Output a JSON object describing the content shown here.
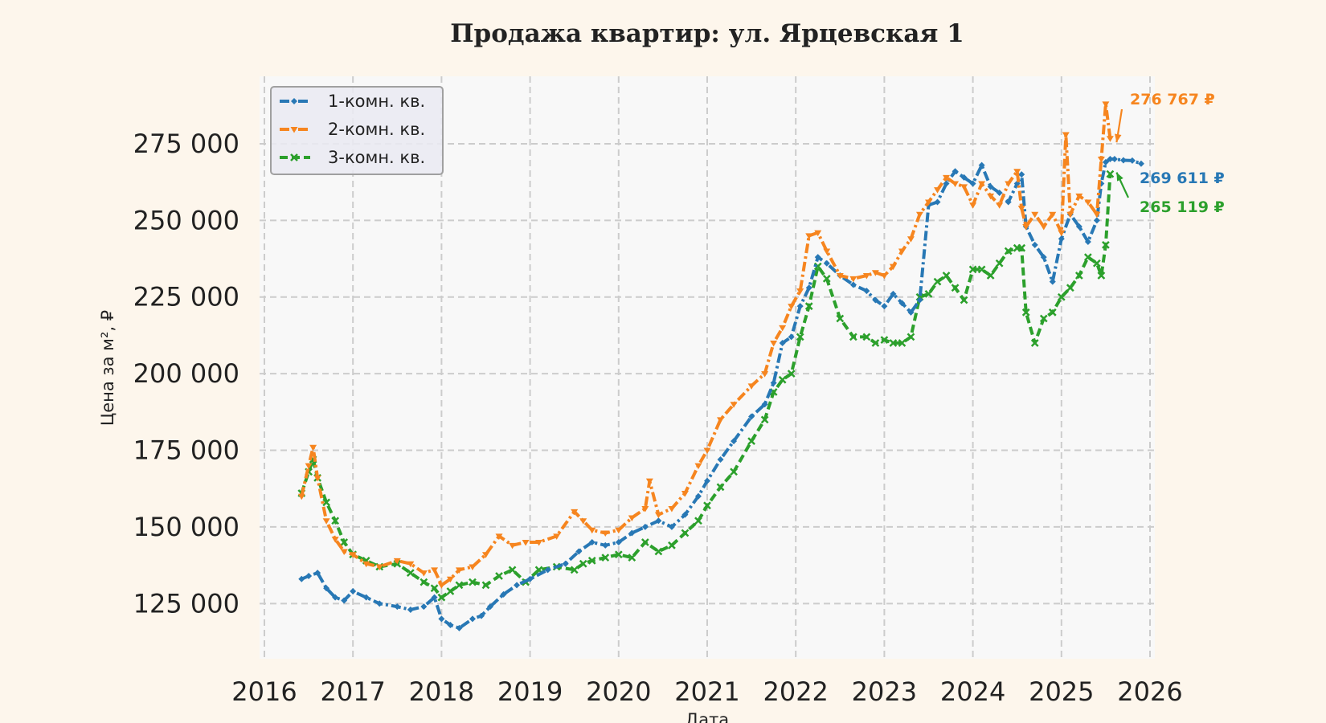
{
  "chart_data": {
    "type": "line",
    "title": "Продажа квартир: ул. Ярцевская 1",
    "xlabel": "Дата",
    "ylabel": "Цена за м², ₽",
    "xlim": [
      2016,
      2026
    ],
    "ylim": [
      107000,
      297000
    ],
    "x_ticks": [
      "2016",
      "2017",
      "2018",
      "2019",
      "2020",
      "2021",
      "2022",
      "2023",
      "2024",
      "2025",
      "2026"
    ],
    "y_ticks": [
      "125 000",
      "150 000",
      "175 000",
      "200 000",
      "225 000",
      "250 000",
      "275 000"
    ],
    "y_tick_values": [
      125000,
      150000,
      175000,
      200000,
      225000,
      250000,
      275000
    ],
    "grid": true,
    "legend_position": "top-left",
    "series": [
      {
        "name": "1-комн. кв.",
        "color": "#2878b5",
        "dash": "dashdot",
        "marker": "diamond",
        "x": [
          2016.42,
          2016.5,
          2016.6,
          2016.7,
          2016.8,
          2016.9,
          2017.0,
          2017.15,
          2017.3,
          2017.5,
          2017.65,
          2017.8,
          2017.92,
          2018.0,
          2018.1,
          2018.2,
          2018.35,
          2018.45,
          2018.55,
          2018.7,
          2018.85,
          2019.0,
          2019.2,
          2019.4,
          2019.55,
          2019.7,
          2019.85,
          2020.0,
          2020.15,
          2020.3,
          2020.45,
          2020.6,
          2020.75,
          2020.9,
          2021.0,
          2021.15,
          2021.3,
          2021.5,
          2021.65,
          2021.75,
          2021.85,
          2021.95,
          2022.05,
          2022.15,
          2022.25,
          2022.35,
          2022.5,
          2022.65,
          2022.8,
          2022.9,
          2023.0,
          2023.1,
          2023.2,
          2023.3,
          2023.4,
          2023.5,
          2023.6,
          2023.7,
          2023.8,
          2023.9,
          2024.0,
          2024.1,
          2024.2,
          2024.3,
          2024.4,
          2024.5,
          2024.55,
          2024.6,
          2024.7,
          2024.8,
          2024.9,
          2025.0,
          2025.1,
          2025.2,
          2025.3,
          2025.4,
          2025.45,
          2025.5,
          2025.55,
          2025.6,
          2025.7,
          2025.8,
          2025.9
        ],
        "y": [
          133000,
          134000,
          135000,
          130000,
          127000,
          126000,
          129000,
          127000,
          125000,
          124000,
          123000,
          124000,
          127000,
          120000,
          118000,
          117000,
          120000,
          121000,
          124000,
          128000,
          131000,
          133000,
          136000,
          138000,
          142000,
          145000,
          144000,
          145000,
          148000,
          150000,
          152000,
          150000,
          154000,
          160000,
          165000,
          172000,
          178000,
          186000,
          190000,
          197000,
          210000,
          212000,
          222000,
          228000,
          238000,
          236000,
          232000,
          229000,
          227000,
          224000,
          222000,
          226000,
          223000,
          220000,
          224000,
          255000,
          256000,
          262000,
          266000,
          264000,
          262000,
          268000,
          261000,
          259000,
          256000,
          262000,
          265000,
          248000,
          242000,
          238000,
          230000,
          244000,
          252000,
          248000,
          243000,
          250000,
          262000,
          269000,
          270000,
          270000,
          269611,
          269500,
          268500
        ]
      },
      {
        "name": "2-комн. кв.",
        "color": "#f6851f",
        "dash": "dashdot",
        "marker": "triangle",
        "x": [
          2016.42,
          2016.5,
          2016.55,
          2016.6,
          2016.7,
          2016.8,
          2016.9,
          2017.0,
          2017.15,
          2017.3,
          2017.5,
          2017.65,
          2017.8,
          2017.92,
          2018.0,
          2018.1,
          2018.2,
          2018.35,
          2018.5,
          2018.65,
          2018.8,
          2018.95,
          2019.1,
          2019.3,
          2019.5,
          2019.6,
          2019.7,
          2019.85,
          2020.0,
          2020.15,
          2020.3,
          2020.35,
          2020.45,
          2020.6,
          2020.75,
          2020.9,
          2021.0,
          2021.15,
          2021.3,
          2021.5,
          2021.65,
          2021.75,
          2021.85,
          2021.95,
          2022.05,
          2022.15,
          2022.25,
          2022.35,
          2022.5,
          2022.65,
          2022.8,
          2022.9,
          2023.0,
          2023.1,
          2023.2,
          2023.3,
          2023.4,
          2023.5,
          2023.6,
          2023.7,
          2023.8,
          2023.9,
          2024.0,
          2024.1,
          2024.2,
          2024.3,
          2024.4,
          2024.5,
          2024.55,
          2024.6,
          2024.7,
          2024.8,
          2024.9,
          2025.0,
          2025.05,
          2025.1,
          2025.2,
          2025.3,
          2025.4,
          2025.45,
          2025.5,
          2025.55
        ],
        "y": [
          160000,
          170000,
          176000,
          166000,
          152000,
          146000,
          142000,
          141000,
          138000,
          137000,
          139000,
          138000,
          135000,
          136000,
          131000,
          133000,
          136000,
          137000,
          141000,
          147000,
          144000,
          145000,
          145000,
          147000,
          155000,
          152000,
          149000,
          148000,
          149000,
          153000,
          156000,
          165000,
          154000,
          156000,
          161000,
          170000,
          175000,
          185000,
          190000,
          196000,
          200000,
          210000,
          215000,
          222000,
          227000,
          245000,
          246000,
          240000,
          232000,
          231000,
          232000,
          233000,
          232000,
          235000,
          240000,
          244000,
          252000,
          256000,
          260000,
          264000,
          262000,
          261000,
          255000,
          262000,
          258000,
          255000,
          262000,
          266000,
          254000,
          248000,
          252000,
          248000,
          252000,
          246000,
          278000,
          252000,
          258000,
          256000,
          252000,
          270000,
          288000,
          276767
        ]
      },
      {
        "name": "3-комн. кв.",
        "color": "#2ca02c",
        "dash": "dashed",
        "marker": "x",
        "x": [
          2016.42,
          2016.5,
          2016.55,
          2016.6,
          2016.7,
          2016.8,
          2016.9,
          2017.0,
          2017.15,
          2017.3,
          2017.5,
          2017.65,
          2017.8,
          2017.92,
          2018.0,
          2018.1,
          2018.2,
          2018.35,
          2018.5,
          2018.65,
          2018.8,
          2018.95,
          2019.1,
          2019.3,
          2019.5,
          2019.6,
          2019.7,
          2019.85,
          2020.0,
          2020.15,
          2020.3,
          2020.45,
          2020.6,
          2020.75,
          2020.9,
          2021.0,
          2021.15,
          2021.3,
          2021.5,
          2021.65,
          2021.75,
          2021.85,
          2021.95,
          2022.05,
          2022.15,
          2022.25,
          2022.35,
          2022.5,
          2022.65,
          2022.8,
          2022.9,
          2023.0,
          2023.1,
          2023.2,
          2023.3,
          2023.4,
          2023.5,
          2023.6,
          2023.7,
          2023.8,
          2023.9,
          2024.0,
          2024.1,
          2024.2,
          2024.3,
          2024.4,
          2024.5,
          2024.55,
          2024.6,
          2024.7,
          2024.8,
          2024.9,
          2025.0,
          2025.1,
          2025.2,
          2025.3,
          2025.4,
          2025.45,
          2025.5,
          2025.55
        ],
        "y": [
          161000,
          168000,
          172000,
          166000,
          158000,
          152000,
          145000,
          141000,
          139000,
          137000,
          138000,
          135000,
          132000,
          130000,
          127000,
          129000,
          131000,
          132000,
          131000,
          134000,
          136000,
          132000,
          136000,
          137000,
          136000,
          138000,
          139000,
          140000,
          141000,
          140000,
          145000,
          142000,
          144000,
          148000,
          152000,
          157000,
          163000,
          168000,
          178000,
          185000,
          194000,
          198000,
          200000,
          212000,
          222000,
          235000,
          231000,
          218000,
          212000,
          212000,
          210000,
          211000,
          210000,
          210000,
          212000,
          225000,
          226000,
          230000,
          232000,
          228000,
          224000,
          234000,
          234000,
          232000,
          236000,
          240000,
          241000,
          241000,
          220000,
          210000,
          218000,
          220000,
          225000,
          228000,
          232000,
          238000,
          236000,
          232000,
          242000,
          265119
        ]
      }
    ],
    "annotations": [
      {
        "text": "276 767 ₽",
        "series": "2-комн. кв.",
        "value": 276767,
        "color": "#f6851f"
      },
      {
        "text": "269 611 ₽",
        "series": "1-комн. кв.",
        "value": 269611,
        "color": "#2878b5"
      },
      {
        "text": "265 119 ₽",
        "series": "3-комн. кв.",
        "value": 265119,
        "color": "#2ca02c"
      }
    ]
  }
}
